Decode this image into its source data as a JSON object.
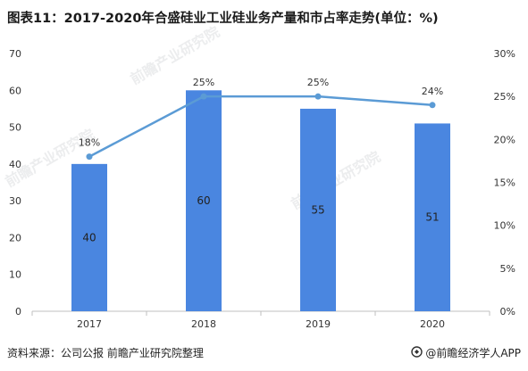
{
  "title": "图表11：2017-2020年合盛硅业工业硅业务产量和市占率走势(单位：%)",
  "source": "资料来源：公司公报 前瞻产业研究院整理",
  "brand": "@前瞻经济学人APP",
  "watermark": "前瞻产业研究院",
  "colors": {
    "bar": "#4a86e0",
    "line": "#5b9bd5"
  },
  "chart_data": {
    "type": "bar",
    "categories": [
      "2017",
      "2018",
      "2019",
      "2020"
    ],
    "series": [
      {
        "name": "",
        "type": "bar",
        "axis": "left",
        "values": [
          40,
          60,
          55,
          51
        ],
        "labels": [
          "40",
          "60",
          "55",
          "51"
        ]
      },
      {
        "name": "",
        "type": "line",
        "axis": "right",
        "values": [
          18,
          25,
          25,
          24
        ],
        "labels": [
          "18%",
          "25%",
          "25%",
          "24%"
        ]
      }
    ],
    "y_left": {
      "min": 0,
      "max": 70,
      "step": 10,
      "ticks": [
        "0",
        "10",
        "20",
        "30",
        "40",
        "50",
        "60",
        "70"
      ]
    },
    "y_right": {
      "min": 0,
      "max": 30,
      "step": 5,
      "ticks": [
        "0%",
        "5%",
        "10%",
        "15%",
        "20%",
        "25%",
        "30%"
      ]
    },
    "grid": false,
    "legend": "none"
  }
}
